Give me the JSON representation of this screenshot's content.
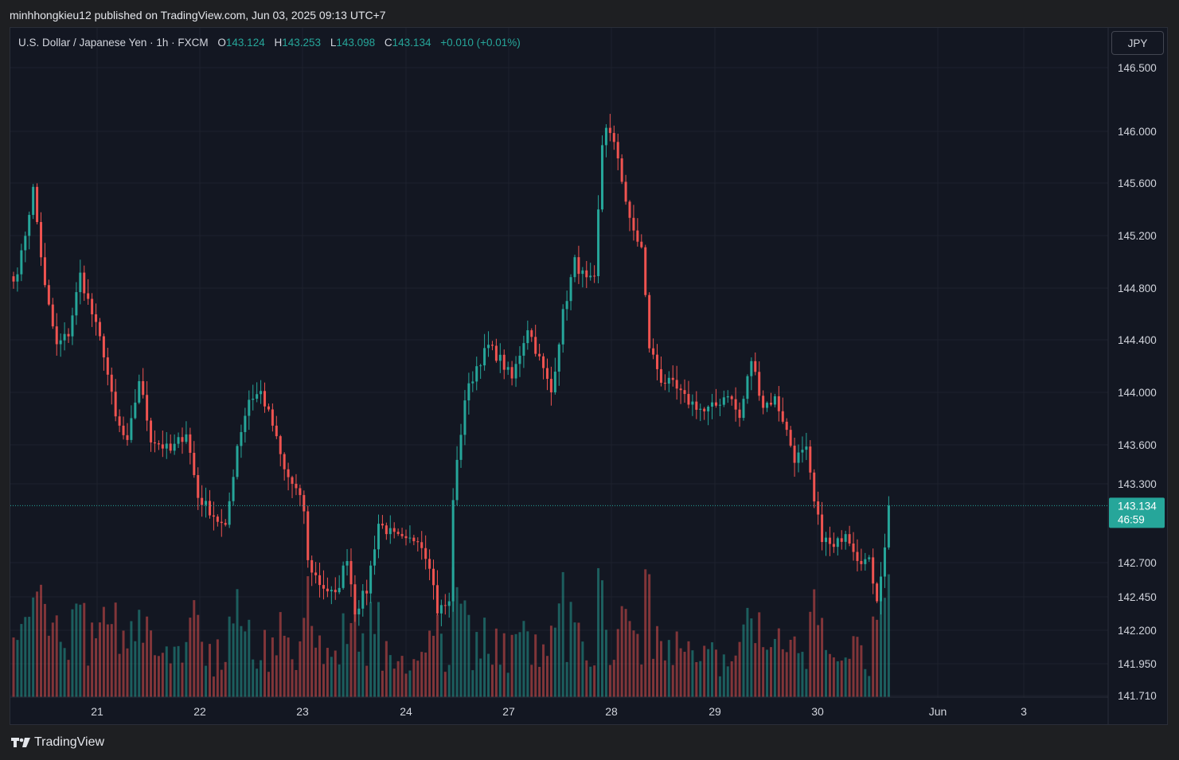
{
  "header": {
    "published": "minhhongkieu12 published on TradingView.com, Jun 03, 2025 09:13 UTC+7"
  },
  "legend": {
    "symbol": "U.S. Dollar / Japanese Yen · 1h · FXCM",
    "o_label": "O",
    "o_value": "143.124",
    "h_label": "H",
    "h_value": "143.253",
    "l_label": "L",
    "l_value": "143.098",
    "c_label": "C",
    "c_value": "143.134",
    "change": "+0.010 (+0.01%)"
  },
  "currency_button": "JPY",
  "brand": "TradingView",
  "colors": {
    "up": "#26a69a",
    "down": "#ef5350",
    "background": "#131722",
    "grid": "#1e222d"
  },
  "chart_data": {
    "type": "candlestick",
    "interval": "1h",
    "y_ticks": [
      "146.500",
      "146.000",
      "145.600",
      "145.200",
      "144.800",
      "144.400",
      "144.000",
      "143.600",
      "143.300",
      "142.700",
      "142.450",
      "142.200",
      "141.950",
      "141.710"
    ],
    "x_ticks": [
      "21",
      "22",
      "23",
      "24",
      "27",
      "28",
      "29",
      "30",
      "Jun",
      "3"
    ],
    "last_price": "143.134",
    "countdown": "46:59",
    "close_anchors": [
      [
        0,
        144.85
      ],
      [
        2,
        145.05
      ],
      [
        5,
        145.55
      ],
      [
        8,
        144.8
      ],
      [
        11,
        144.35
      ],
      [
        14,
        144.45
      ],
      [
        17,
        144.9
      ],
      [
        20,
        144.6
      ],
      [
        23,
        144.3
      ],
      [
        26,
        143.8
      ],
      [
        29,
        143.6
      ],
      [
        32,
        144.1
      ],
      [
        35,
        143.65
      ],
      [
        40,
        143.55
      ],
      [
        44,
        143.7
      ],
      [
        47,
        143.2
      ],
      [
        50,
        143.1
      ],
      [
        54,
        142.95
      ],
      [
        57,
        143.6
      ],
      [
        60,
        143.95
      ],
      [
        63,
        144.0
      ],
      [
        66,
        143.75
      ],
      [
        69,
        143.4
      ],
      [
        72,
        143.25
      ],
      [
        74,
        143.1
      ],
      [
        75,
        142.7
      ],
      [
        78,
        142.55
      ],
      [
        82,
        142.45
      ],
      [
        85,
        142.75
      ],
      [
        87,
        142.35
      ],
      [
        90,
        142.5
      ],
      [
        93,
        143.0
      ],
      [
        97,
        142.9
      ],
      [
        100,
        142.85
      ],
      [
        103,
        142.9
      ],
      [
        106,
        142.7
      ],
      [
        108,
        142.35
      ],
      [
        111,
        142.4
      ],
      [
        112,
        143.2
      ],
      [
        115,
        143.95
      ],
      [
        118,
        144.2
      ],
      [
        121,
        144.35
      ],
      [
        124,
        144.25
      ],
      [
        127,
        144.1
      ],
      [
        131,
        144.5
      ],
      [
        134,
        144.25
      ],
      [
        137,
        144.0
      ],
      [
        140,
        144.6
      ],
      [
        143,
        145.0
      ],
      [
        146,
        144.85
      ],
      [
        148,
        144.85
      ],
      [
        150,
        145.9
      ],
      [
        151,
        146.05
      ],
      [
        154,
        145.8
      ],
      [
        157,
        145.3
      ],
      [
        160,
        145.1
      ],
      [
        162,
        144.35
      ],
      [
        165,
        144.1
      ],
      [
        168,
        144.05
      ],
      [
        171,
        143.95
      ],
      [
        174,
        143.9
      ],
      [
        176,
        143.85
      ],
      [
        179,
        143.9
      ],
      [
        182,
        144.0
      ],
      [
        185,
        143.8
      ],
      [
        188,
        144.25
      ],
      [
        191,
        143.9
      ],
      [
        194,
        143.95
      ],
      [
        196,
        143.8
      ],
      [
        199,
        143.5
      ],
      [
        202,
        143.55
      ],
      [
        204,
        143.15
      ],
      [
        206,
        142.9
      ],
      [
        209,
        142.8
      ],
      [
        212,
        142.95
      ],
      [
        215,
        142.75
      ],
      [
        218,
        142.7
      ],
      [
        220,
        142.45
      ],
      [
        222,
        142.8
      ],
      [
        223,
        143.134
      ]
    ]
  }
}
